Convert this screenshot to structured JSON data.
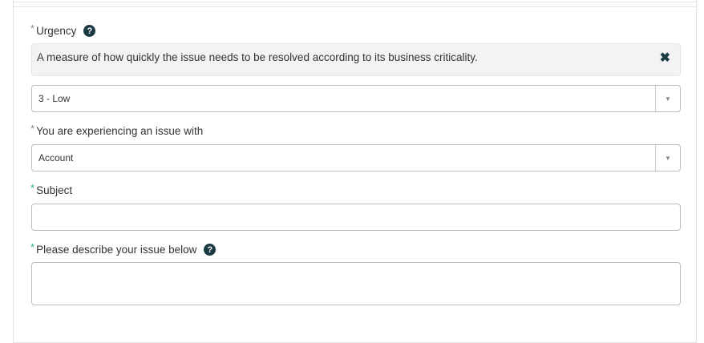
{
  "urgency": {
    "label": "Urgency",
    "help_text": "A measure of how quickly the issue needs to be resolved according to its business criticality.",
    "value": "3 - Low"
  },
  "issue_with": {
    "label": "You are experiencing an issue with",
    "value": "Account"
  },
  "subject": {
    "label": "Subject",
    "value": ""
  },
  "description": {
    "label": "Please describe your issue below",
    "value": ""
  },
  "colors": {
    "accent": "#2bb38a",
    "icon": "#1a3a44"
  }
}
